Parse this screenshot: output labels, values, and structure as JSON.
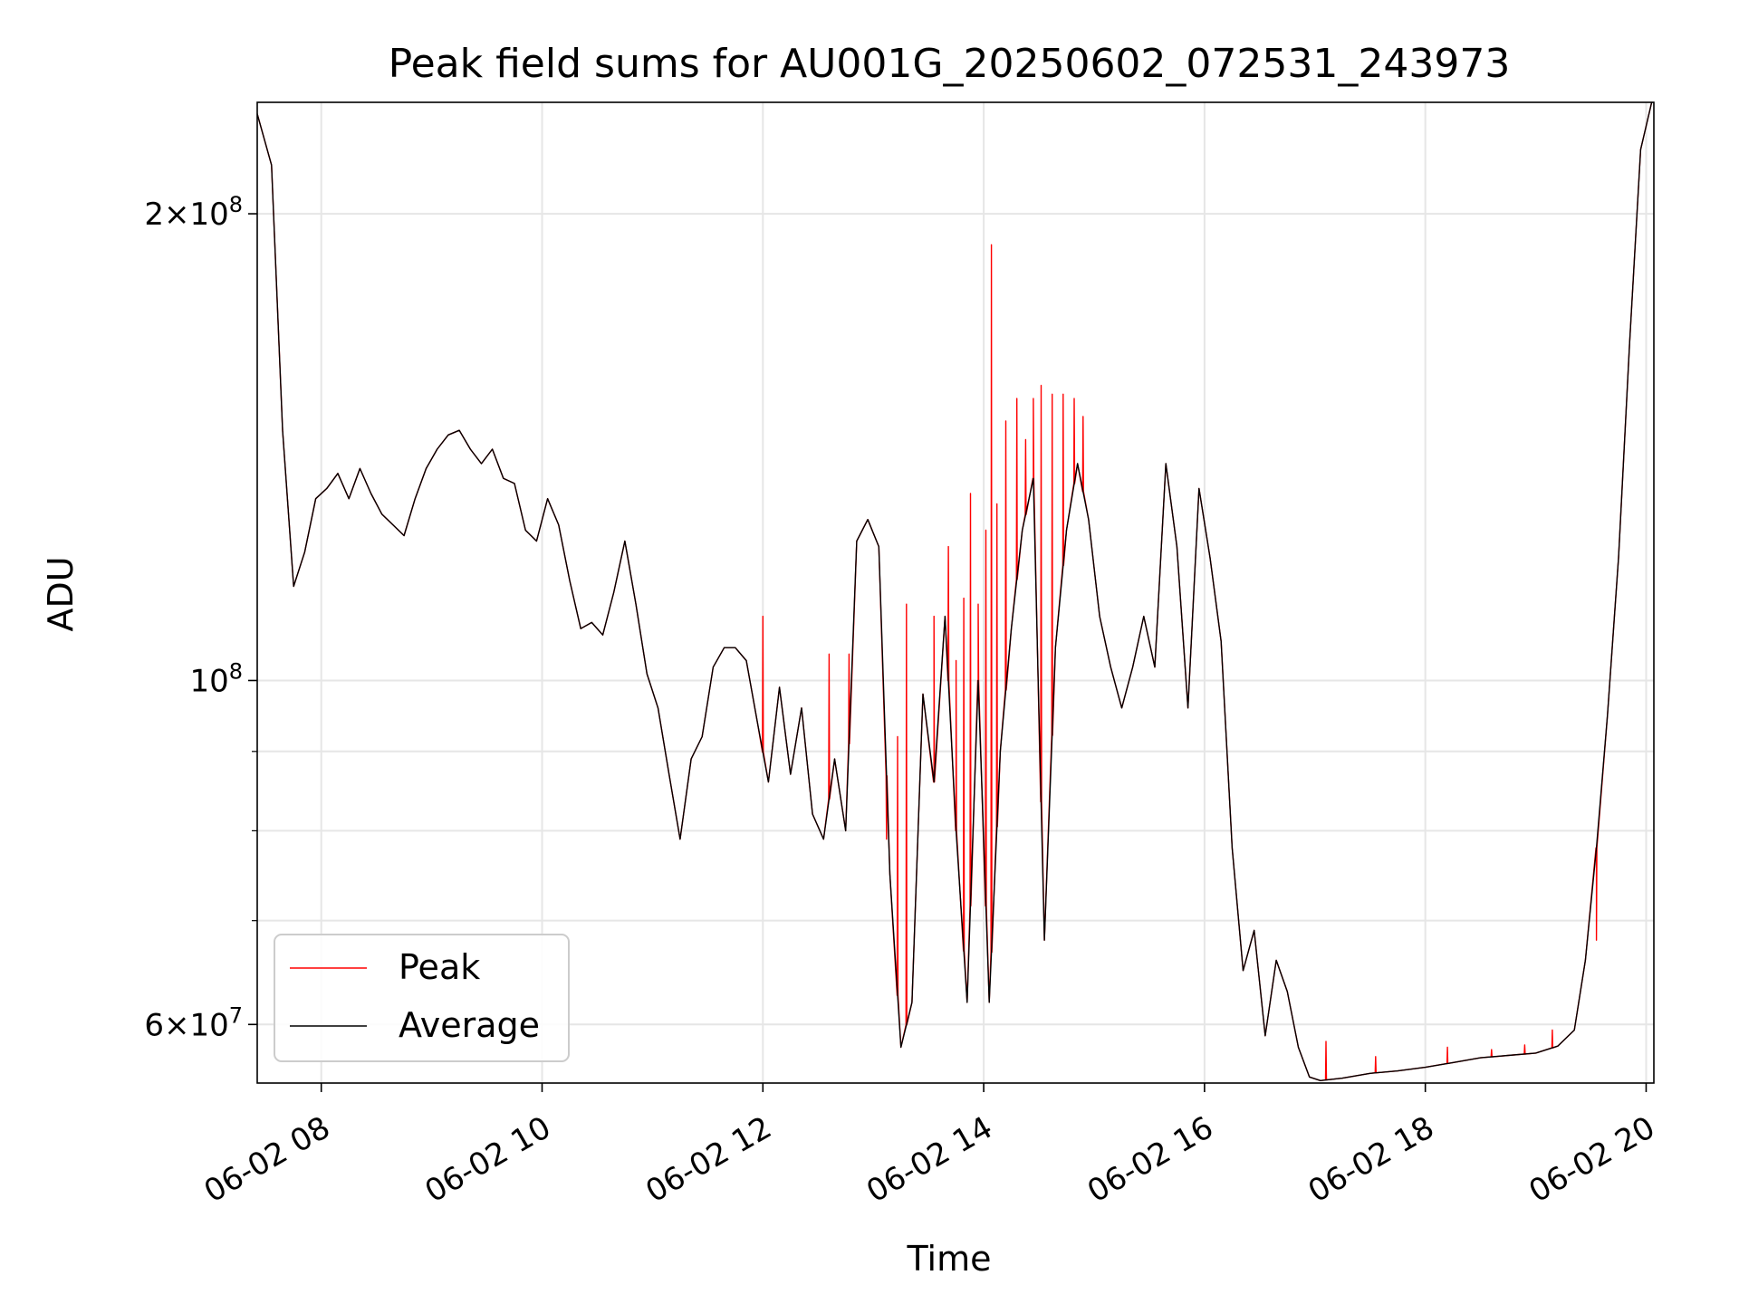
{
  "chart_data": {
    "type": "line",
    "title": "Peak field sums for AU001G_20250602_072531_243973",
    "xlabel": "Time",
    "ylabel": "ADU",
    "x_unit": "hours",
    "xlim": [
      7.42,
      20.07
    ],
    "ylim": [
      55000000.0,
      236000000.0
    ],
    "yscale": "log",
    "grid": true,
    "legend_position": "lower left",
    "xticks": [
      {
        "value": 8,
        "label": "06-02 08"
      },
      {
        "value": 10,
        "label": "06-02 10"
      },
      {
        "value": 12,
        "label": "06-02 12"
      },
      {
        "value": 14,
        "label": "06-02 14"
      },
      {
        "value": 16,
        "label": "06-02 16"
      },
      {
        "value": 18,
        "label": "06-02 18"
      },
      {
        "value": 20,
        "label": "06-02 20"
      }
    ],
    "yticks_major": [
      {
        "value": 60000000.0,
        "base": "6×10",
        "exp": "7"
      },
      {
        "value": 100000000.0,
        "base": "10",
        "exp": "8"
      },
      {
        "value": 200000000.0,
        "base": "2×10",
        "exp": "8"
      }
    ],
    "yticks_minor": [
      70000000.0,
      80000000.0,
      90000000.0
    ],
    "series": [
      {
        "name": "Average",
        "color": "#000000",
        "x": [
          7.42,
          7.55,
          7.65,
          7.75,
          7.85,
          7.95,
          8.05,
          8.15,
          8.25,
          8.35,
          8.45,
          8.55,
          8.65,
          8.75,
          8.85,
          8.95,
          9.05,
          9.15,
          9.25,
          9.35,
          9.45,
          9.55,
          9.65,
          9.75,
          9.85,
          9.95,
          10.05,
          10.15,
          10.25,
          10.35,
          10.45,
          10.55,
          10.65,
          10.75,
          10.85,
          10.95,
          11.05,
          11.15,
          11.25,
          11.35,
          11.45,
          11.55,
          11.65,
          11.75,
          11.85,
          11.95,
          12.05,
          12.15,
          12.25,
          12.35,
          12.45,
          12.55,
          12.65,
          12.75,
          12.85,
          12.95,
          13.05,
          13.15,
          13.25,
          13.35,
          13.45,
          13.55,
          13.65,
          13.75,
          13.85,
          13.95,
          14.05,
          14.15,
          14.25,
          14.35,
          14.45,
          14.55,
          14.65,
          14.75,
          14.85,
          14.95,
          15.05,
          15.15,
          15.25,
          15.35,
          15.45,
          15.55,
          15.65,
          15.75,
          15.85,
          15.95,
          16.05,
          16.15,
          16.25,
          16.35,
          16.45,
          16.55,
          16.65,
          16.75,
          16.85,
          16.95,
          17.05,
          17.25,
          17.5,
          17.75,
          18.0,
          18.25,
          18.5,
          18.75,
          19.0,
          19.2,
          19.35,
          19.45,
          19.55,
          19.65,
          19.75,
          19.85,
          19.95,
          20.05
        ],
        "y": [
          232000000.0,
          215000000.0,
          145000000.0,
          115000000.0,
          121000000.0,
          131000000.0,
          133000000.0,
          136000000.0,
          131000000.0,
          137000000.0,
          132000000.0,
          128000000.0,
          126000000.0,
          124000000.0,
          131000000.0,
          137000000.0,
          141000000.0,
          144000000.0,
          145000000.0,
          141000000.0,
          138000000.0,
          141000000.0,
          135000000.0,
          134000000.0,
          125000000.0,
          123000000.0,
          131000000.0,
          126000000.0,
          116000000.0,
          108000000.0,
          109000000.0,
          107000000.0,
          114000000.0,
          123000000.0,
          112000000.0,
          101000000.0,
          96000000.0,
          87000000.0,
          79000000.0,
          89000000.0,
          92000000.0,
          102000000.0,
          105000000.0,
          105000000.0,
          103000000.0,
          94000000.0,
          86000000.0,
          99000000.0,
          87000000.0,
          96000000.0,
          82000000.0,
          79000000.0,
          89000000.0,
          80000000.0,
          123000000.0,
          127000000.0,
          122000000.0,
          75000000.0,
          58000000.0,
          62000000.0,
          98000000.0,
          86000000.0,
          110000000.0,
          80000000.0,
          62000000.0,
          100000000.0,
          62000000.0,
          90000000.0,
          108000000.0,
          125000000.0,
          135000000.0,
          68000000.0,
          105000000.0,
          125000000.0,
          138000000.0,
          127000000.0,
          110000000.0,
          102000000.0,
          96000000.0,
          102000000.0,
          110000000.0,
          102000000.0,
          138000000.0,
          122000000.0,
          96000000.0,
          133000000.0,
          120000000.0,
          106000000.0,
          78000000.0,
          65000000.0,
          69000000.0,
          59000000.0,
          66000000.0,
          63000000.0,
          58000000.0,
          55500000.0,
          55200000.0,
          55400000.0,
          55800000.0,
          56000000.0,
          56300000.0,
          56700000.0,
          57100000.0,
          57300000.0,
          57500000.0,
          58100000.0,
          59500000.0,
          66000000.0,
          78000000.0,
          95000000.0,
          120000000.0,
          165000000.0,
          220000000.0,
          236000000.0
        ]
      },
      {
        "name": "Peak",
        "color": "#ff0000",
        "spikes": [
          {
            "x": 12.0,
            "y": 110000000.0
          },
          {
            "x": 12.6,
            "y": 104000000.0
          },
          {
            "x": 12.78,
            "y": 104000000.0
          },
          {
            "x": 13.12,
            "y": 79000000.0
          },
          {
            "x": 13.22,
            "y": 92000000.0
          },
          {
            "x": 13.3,
            "y": 112000000.0
          },
          {
            "x": 13.55,
            "y": 110000000.0
          },
          {
            "x": 13.68,
            "y": 122000000.0
          },
          {
            "x": 13.75,
            "y": 103000000.0
          },
          {
            "x": 13.82,
            "y": 113000000.0
          },
          {
            "x": 13.88,
            "y": 132000000.0
          },
          {
            "x": 13.95,
            "y": 112000000.0
          },
          {
            "x": 14.02,
            "y": 125000000.0
          },
          {
            "x": 14.07,
            "y": 191000000.0
          },
          {
            "x": 14.12,
            "y": 130000000.0
          },
          {
            "x": 14.2,
            "y": 147000000.0
          },
          {
            "x": 14.3,
            "y": 152000000.0
          },
          {
            "x": 14.38,
            "y": 143000000.0
          },
          {
            "x": 14.45,
            "y": 152000000.0
          },
          {
            "x": 14.52,
            "y": 155000000.0
          },
          {
            "x": 14.62,
            "y": 153000000.0
          },
          {
            "x": 14.72,
            "y": 153000000.0
          },
          {
            "x": 14.82,
            "y": 152000000.0
          },
          {
            "x": 14.9,
            "y": 148000000.0
          },
          {
            "x": 17.1,
            "y": 58500000.0
          },
          {
            "x": 17.55,
            "y": 57200000.0
          },
          {
            "x": 18.2,
            "y": 58000000.0
          },
          {
            "x": 18.6,
            "y": 57800000.0
          },
          {
            "x": 18.9,
            "y": 58200000.0
          },
          {
            "x": 19.15,
            "y": 59500000.0
          },
          {
            "x": 19.55,
            "y": 68000000.0
          }
        ]
      }
    ]
  }
}
